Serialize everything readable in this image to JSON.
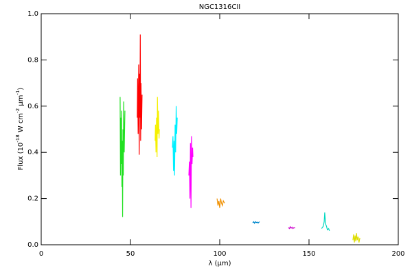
{
  "chart_data": {
    "type": "line",
    "title": "NGC1316CII",
    "xlabel": "λ (μm)",
    "ylabel": [
      "Flux (10",
      "-18",
      " W cm",
      "-2",
      " μm",
      "-1",
      ")"
    ],
    "xlim": [
      0,
      200
    ],
    "xticks": [
      0,
      50,
      100,
      150,
      200
    ],
    "ylim": [
      0,
      1.0
    ],
    "yticks": [
      {
        "value": 0,
        "label": "0.0"
      },
      0.2,
      0.4,
      0.6,
      0.8,
      {
        "value": 1,
        "label": "1.0"
      }
    ],
    "series": [
      {
        "color": "#22e022",
        "x": [
          44.2,
          44.4,
          44.6,
          44.8,
          45.0,
          45.2,
          45.4,
          45.6,
          45.8,
          46.0,
          46.2,
          46.5,
          46.9
        ],
        "values": [
          0.64,
          0.3,
          0.55,
          0.35,
          0.58,
          0.25,
          0.45,
          0.12,
          0.5,
          0.3,
          0.62,
          0.4,
          0.58
        ]
      },
      {
        "color": "#ff0000",
        "x": [
          53.8,
          54.0,
          54.3,
          54.6,
          54.9,
          55.1,
          55.3,
          55.5,
          55.7,
          55.9,
          56.2,
          56.5
        ],
        "values": [
          0.55,
          0.72,
          0.48,
          0.78,
          0.39,
          0.74,
          0.55,
          0.91,
          0.45,
          0.7,
          0.5,
          0.65
        ]
      },
      {
        "color": "#f5f000",
        "x": [
          63.8,
          64.0,
          64.3,
          64.6,
          64.9,
          65.1,
          65.4,
          65.7,
          66.0,
          66.2
        ],
        "values": [
          0.45,
          0.52,
          0.4,
          0.55,
          0.38,
          0.64,
          0.48,
          0.58,
          0.46,
          0.5
        ]
      },
      {
        "color": "#00f0ff",
        "x": [
          73.5,
          73.8,
          74.1,
          74.4,
          74.7,
          75.0,
          75.3,
          75.6,
          75.9,
          76.2
        ],
        "values": [
          0.42,
          0.47,
          0.32,
          0.45,
          0.3,
          0.52,
          0.4,
          0.6,
          0.48,
          0.55
        ]
      },
      {
        "color": "#ff00ff",
        "x": [
          82.7,
          83.0,
          83.3,
          83.6,
          83.9,
          84.2,
          84.5,
          84.8,
          85.0
        ],
        "values": [
          0.3,
          0.36,
          0.2,
          0.44,
          0.16,
          0.47,
          0.35,
          0.42,
          0.38
        ]
      },
      {
        "color": "#f09000",
        "x": [
          98.5,
          99.0,
          99.5,
          100.0,
          100.5,
          101.0,
          101.5,
          102.0,
          102.7
        ],
        "values": [
          0.2,
          0.17,
          0.19,
          0.16,
          0.2,
          0.18,
          0.17,
          0.19,
          0.18
        ]
      },
      {
        "color": "#0088cc",
        "x": [
          118.5,
          119.0,
          119.5,
          120.0,
          120.5,
          121.0,
          121.5,
          122.3
        ],
        "values": [
          0.095,
          0.1,
          0.093,
          0.1,
          0.096,
          0.098,
          0.094,
          0.1
        ]
      },
      {
        "color": "#cc00cc",
        "x": [
          138.5,
          139.0,
          139.5,
          140.0,
          140.5,
          141.0,
          141.5,
          142.3
        ],
        "values": [
          0.075,
          0.07,
          0.078,
          0.072,
          0.076,
          0.07,
          0.074,
          0.073
        ]
      },
      {
        "color": "#00d8c0",
        "x": [
          157,
          157.5,
          158,
          158.5,
          158.8,
          159.0,
          159.3,
          159.8,
          160.3,
          161.0,
          161.5
        ],
        "values": [
          0.07,
          0.075,
          0.08,
          0.1,
          0.14,
          0.12,
          0.09,
          0.08,
          0.065,
          0.07,
          0.06
        ]
      },
      {
        "color": "#dddd00",
        "x": [
          174.6,
          175.0,
          175.4,
          175.8,
          176.2,
          176.6,
          177.0,
          177.5,
          178.0,
          178.5
        ],
        "values": [
          0.02,
          0.045,
          0.01,
          0.04,
          0.015,
          0.05,
          0.02,
          0.035,
          0.01,
          0.03
        ]
      }
    ]
  }
}
